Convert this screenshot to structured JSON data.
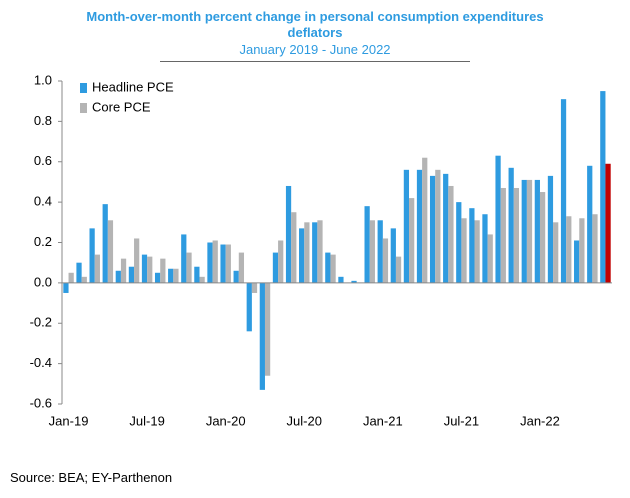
{
  "chart_data": {
    "type": "bar",
    "title": "Month-over-month percent change in personal consumption expenditures deflators",
    "subtitle": "January 2019 - June 2022",
    "source": "Source: BEA; EY-Parthenon",
    "categories": [
      "Jan-19",
      null,
      null,
      null,
      null,
      null,
      "Jul-19",
      null,
      null,
      null,
      null,
      null,
      "Jan-20",
      null,
      null,
      null,
      null,
      null,
      "Jul-20",
      null,
      null,
      null,
      null,
      null,
      "Jan-21",
      null,
      null,
      null,
      null,
      null,
      "Jul-21",
      null,
      null,
      null,
      null,
      null,
      "Jan-22",
      null,
      null,
      null,
      null,
      null
    ],
    "series": [
      {
        "name": "Headline PCE",
        "color": "#2e9be0",
        "values": [
          -0.05,
          0.1,
          0.27,
          0.39,
          0.06,
          0.08,
          0.14,
          0.05,
          0.07,
          0.24,
          0.08,
          0.2,
          0.19,
          0.06,
          -0.24,
          -0.53,
          0.15,
          0.48,
          0.27,
          0.3,
          0.15,
          0.03,
          0.01,
          0.38,
          0.31,
          0.27,
          0.56,
          0.56,
          0.53,
          0.54,
          0.4,
          0.37,
          0.34,
          0.63,
          0.57,
          0.51,
          0.51,
          0.53,
          0.91,
          0.21,
          0.58,
          0.95
        ]
      },
      {
        "name": "Core PCE",
        "color": "#b4b4b4",
        "highlight_color": "#c00000",
        "values": [
          0.05,
          0.03,
          0.14,
          0.31,
          0.12,
          0.22,
          0.13,
          0.12,
          0.07,
          0.15,
          0.03,
          0.21,
          0.19,
          0.15,
          -0.05,
          -0.46,
          0.21,
          0.35,
          0.3,
          0.31,
          0.14,
          0.0,
          0.0,
          0.31,
          0.22,
          0.13,
          0.42,
          0.62,
          0.56,
          0.48,
          0.32,
          0.31,
          0.24,
          0.47,
          0.47,
          0.51,
          0.45,
          0.3,
          0.33,
          0.32,
          0.34,
          0.59
        ]
      }
    ],
    "ylim": [
      -0.6,
      1.0
    ],
    "yticks": [
      -0.6,
      -0.4,
      -0.2,
      {
        "value": 0,
        "label": "0.0"
      },
      0.2,
      0.4,
      0.6,
      0.8,
      {
        "value": 1,
        "label": "1.0"
      }
    ],
    "grid": false,
    "legend": "top-left"
  }
}
